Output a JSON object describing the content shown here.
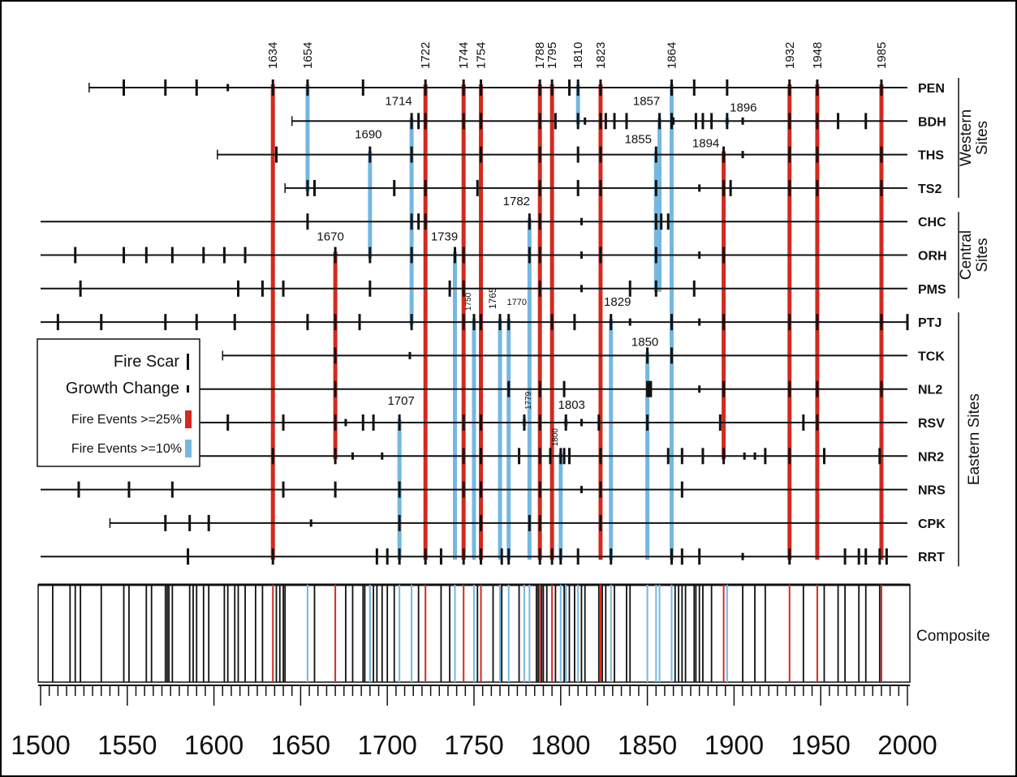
{
  "chart_data": {
    "type": "fire-history",
    "x_range": [
      1500,
      2000
    ],
    "x_ticks": [
      1500,
      1550,
      1600,
      1650,
      1700,
      1750,
      1800,
      1850,
      1900,
      1950,
      2000
    ],
    "sites": [
      {
        "name": "PEN",
        "start": 1528,
        "end": 2000,
        "scars": [
          1548,
          1572,
          1590,
          1634,
          1654,
          1686,
          1722,
          1744,
          1754,
          1788,
          1795,
          1805,
          1810,
          1823,
          1864,
          1877,
          1896,
          1932,
          1948,
          1985
        ],
        "growth": [
          1608
        ]
      },
      {
        "name": "BDH",
        "start": 1645,
        "end": 2000,
        "scars": [
          1714,
          1718,
          1722,
          1744,
          1754,
          1788,
          1797,
          1810,
          1823,
          1826,
          1831,
          1838,
          1857,
          1864,
          1878,
          1882,
          1887,
          1896,
          1932,
          1948,
          1960,
          1976
        ],
        "growth": [
          1814,
          1865,
          1905
        ]
      },
      {
        "name": "THS",
        "start": 1602,
        "end": 2000,
        "scars": [
          1636,
          1690,
          1714,
          1754,
          1788,
          1810,
          1823,
          1855,
          1894,
          1932,
          1948,
          1985
        ],
        "growth": [
          1905
        ]
      },
      {
        "name": "TS2",
        "start": 1641,
        "end": 2000,
        "scars": [
          1654,
          1658,
          1704,
          1722,
          1752,
          1788,
          1810,
          1823,
          1855,
          1894,
          1898,
          1932,
          1948,
          1985
        ],
        "growth": [
          1880
        ]
      },
      {
        "name": "CHC",
        "start": 1500,
        "end": 2000,
        "scars": [
          1654,
          1714,
          1718,
          1722,
          1782,
          1788,
          1855,
          1858,
          1862
        ],
        "growth": [
          1812
        ]
      },
      {
        "name": "ORH",
        "start": 1500,
        "end": 2000,
        "scars": [
          1520,
          1548,
          1561,
          1576,
          1594,
          1606,
          1618,
          1670,
          1690,
          1714,
          1739,
          1744,
          1782,
          1788,
          1823,
          1855,
          1894
        ],
        "growth": [
          1812,
          1880
        ]
      },
      {
        "name": "PMS",
        "start": 1500,
        "end": 2000,
        "scars": [
          1523,
          1614,
          1628,
          1640,
          1690,
          1736,
          1744,
          1788,
          1840,
          1855,
          1877
        ],
        "growth": [
          1812
        ]
      },
      {
        "name": "PTJ",
        "start": 1500,
        "end": 2000,
        "scars": [
          1510,
          1535,
          1572,
          1590,
          1612,
          1654,
          1670,
          1684,
          1714,
          1744,
          1750,
          1754,
          1765,
          1770,
          1795,
          1808,
          1829,
          1864,
          1894,
          1932,
          1948,
          1985,
          2000
        ],
        "growth": [
          1840,
          1880
        ]
      },
      {
        "name": "TCK",
        "start": 1605,
        "end": 2000,
        "scars": [
          1670,
          1850,
          1864
        ],
        "growth": [
          1713
        ]
      },
      {
        "name": "NL2",
        "start": 1500,
        "end": 2000,
        "scars": [
          1670,
          1770,
          1788,
          1802,
          1850,
          1851,
          1852,
          1894,
          1932,
          1948,
          1985
        ],
        "growth": [
          1880
        ]
      },
      {
        "name": "RSV",
        "start": 1500,
        "end": 2000,
        "scars": [
          1608,
          1640,
          1670,
          1686,
          1692,
          1707,
          1744,
          1754,
          1779,
          1788,
          1803,
          1822,
          1850,
          1892,
          1940,
          1948
        ],
        "growth": [
          1676,
          1812
        ]
      },
      {
        "name": "NR2",
        "start": 1500,
        "end": 2000,
        "scars": [
          1634,
          1670,
          1744,
          1754,
          1776,
          1788,
          1794,
          1800,
          1802,
          1805,
          1823,
          1862,
          1870,
          1882,
          1894,
          1918,
          1932,
          1952,
          1984
        ],
        "growth": [
          1680,
          1697,
          1906,
          1912
        ]
      },
      {
        "name": "NRS",
        "start": 1500,
        "end": 2000,
        "scars": [
          1522,
          1551,
          1576,
          1640,
          1670,
          1707,
          1744,
          1754,
          1788,
          1823,
          1870
        ],
        "growth": [
          1812
        ]
      },
      {
        "name": "CPK",
        "start": 1540,
        "end": 2000,
        "scars": [
          1572,
          1586,
          1597,
          1707,
          1754,
          1782,
          1788,
          1823
        ],
        "growth": [
          1656
        ]
      },
      {
        "name": "RRT",
        "start": 1500,
        "end": 2000,
        "scars": [
          1585,
          1634,
          1694,
          1700,
          1707,
          1722,
          1731,
          1744,
          1754,
          1766,
          1770,
          1788,
          1795,
          1800,
          1810,
          1829,
          1864,
          1870,
          1880,
          1932,
          1964,
          1972,
          1976,
          1984,
          1988
        ],
        "growth": [
          1905
        ]
      }
    ],
    "fire_events_25": [
      {
        "year": 1634,
        "top": "PEN",
        "bottom": "RRT",
        "label": "1634"
      },
      {
        "year": 1670,
        "top": "ORH",
        "bottom": "NR2",
        "label": "1670"
      },
      {
        "year": 1722,
        "top": "PEN",
        "bottom": "RRT",
        "label": "1722"
      },
      {
        "year": 1744,
        "top": "PEN",
        "bottom": "RRT",
        "label": "1744"
      },
      {
        "year": 1754,
        "top": "PEN",
        "bottom": "RRT",
        "label": "1754"
      },
      {
        "year": 1788,
        "top": "PEN",
        "bottom": "RRT",
        "label": "1788"
      },
      {
        "year": 1795,
        "top": "PEN",
        "bottom": "RRT",
        "label": "1795"
      },
      {
        "year": 1823,
        "top": "PEN",
        "bottom": "RRT",
        "label": "1823"
      },
      {
        "year": 1894,
        "top": "THS",
        "bottom": "NR2",
        "label": "1894"
      },
      {
        "year": 1932,
        "top": "PEN",
        "bottom": "RRT",
        "label": "1932"
      },
      {
        "year": 1948,
        "top": "PEN",
        "bottom": "RRT",
        "label": "1948"
      },
      {
        "year": 1985,
        "top": "PEN",
        "bottom": "RRT",
        "label": "1985"
      }
    ],
    "fire_events_10": [
      {
        "year": 1654,
        "top": "PEN",
        "bottom": "TS2",
        "label": "1654"
      },
      {
        "year": 1690,
        "top": "THS",
        "bottom": "ORH",
        "label": "1690"
      },
      {
        "year": 1707,
        "top": "RSV",
        "bottom": "RRT",
        "label": "1707"
      },
      {
        "year": 1714,
        "top": "BDH",
        "bottom": "PTJ",
        "label": "1714"
      },
      {
        "year": 1739,
        "top": "ORH",
        "bottom": "RRT",
        "label": "1739"
      },
      {
        "year": 1750,
        "top": "PTJ",
        "bottom": "RRT",
        "label": "1750"
      },
      {
        "year": 1765,
        "top": "PTJ",
        "bottom": "RRT",
        "label": "1765"
      },
      {
        "year": 1770,
        "top": "PTJ",
        "bottom": "RRT",
        "label": "1770"
      },
      {
        "year": 1779,
        "top": "RSV",
        "bottom": "RSV",
        "label": "1779"
      },
      {
        "year": 1782,
        "top": "CHC",
        "bottom": "RRT",
        "label": "1782"
      },
      {
        "year": 1800,
        "top": "NR2",
        "bottom": "RRT",
        "label": "1800"
      },
      {
        "year": 1803,
        "top": "RSV",
        "bottom": "RSV",
        "label": "1803"
      },
      {
        "year": 1810,
        "top": "PEN",
        "bottom": "BDH",
        "label": "1810"
      },
      {
        "year": 1829,
        "top": "PTJ",
        "bottom": "RRT",
        "label": "1829"
      },
      {
        "year": 1850,
        "top": "TCK",
        "bottom": "RRT",
        "label": "1850"
      },
      {
        "year": 1855,
        "top": "THS",
        "bottom": "PMS",
        "label": "1855"
      },
      {
        "year": 1857,
        "top": "BDH",
        "bottom": "PMS",
        "label": "1857"
      },
      {
        "year": 1864,
        "top": "PEN",
        "bottom": "RRT",
        "label": "1864"
      },
      {
        "year": 1896,
        "top": "BDH",
        "bottom": "BDH",
        "label": "1896"
      }
    ],
    "groups": [
      {
        "label_lines": [
          "Western",
          "Sites"
        ],
        "from": "PEN",
        "to": "TS2"
      },
      {
        "label_lines": [
          "Central",
          "Sites"
        ],
        "from": "CHC",
        "to": "PMS"
      },
      {
        "label_lines": [
          "Eastern Sites"
        ],
        "from": "PTJ",
        "to": "RRT"
      }
    ],
    "composite": {
      "label": "Composite",
      "black_years": [
        1507,
        1517,
        1520,
        1523,
        1535,
        1548,
        1551,
        1561,
        1564,
        1572,
        1573,
        1574,
        1576,
        1586,
        1588,
        1590,
        1594,
        1597,
        1606,
        1608,
        1612,
        1614,
        1618,
        1624,
        1628,
        1636,
        1638,
        1640,
        1641,
        1658,
        1676,
        1680,
        1686,
        1687,
        1690,
        1692,
        1694,
        1697,
        1700,
        1704,
        1718,
        1731,
        1736,
        1752,
        1761,
        1766,
        1776,
        1786,
        1787,
        1789,
        1790,
        1792,
        1797,
        1802,
        1803,
        1805,
        1808,
        1812,
        1814,
        1822,
        1824,
        1826,
        1831,
        1838,
        1840,
        1866,
        1868,
        1870,
        1872,
        1877,
        1878,
        1880,
        1882,
        1887,
        1905,
        1912,
        1918,
        1940,
        1952,
        1960,
        1964,
        1972,
        1976,
        1984
      ],
      "red_years": [
        1634,
        1670,
        1722,
        1744,
        1754,
        1788,
        1795,
        1823,
        1894,
        1932,
        1948,
        1985
      ],
      "blue_years": [
        1654,
        1690,
        1707,
        1714,
        1739,
        1750,
        1765,
        1770,
        1779,
        1782,
        1800,
        1803,
        1810,
        1829,
        1850,
        1855,
        1857,
        1864,
        1896
      ]
    },
    "legend": {
      "position": "left",
      "items": [
        {
          "label": "Fire Scar",
          "kind": "scar"
        },
        {
          "label": "Growth Change",
          "kind": "growth"
        },
        {
          "label": "Fire Events >=25%",
          "kind": "red"
        },
        {
          "label": "Fire Events >=10%",
          "kind": "blue"
        }
      ]
    },
    "colors": {
      "red": "#d42a1e",
      "blue": "#74b8e2",
      "black": "#111111"
    }
  }
}
